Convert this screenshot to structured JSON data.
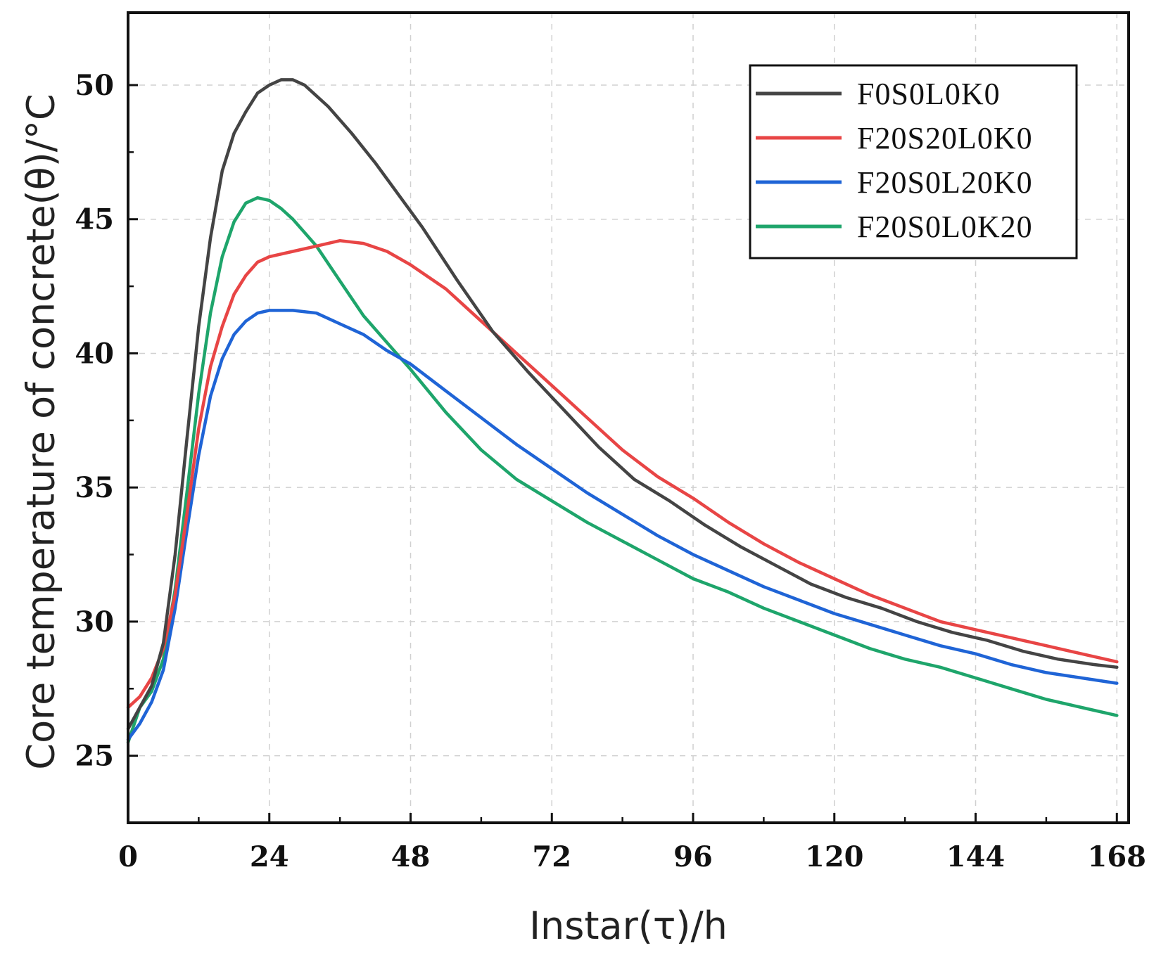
{
  "chart_data": {
    "type": "line",
    "title": "",
    "xlabel": "Instar(τ)/h",
    "ylabel": "Core temperature of concrete(θ)/°C",
    "xlim": [
      0,
      170
    ],
    "ylim": [
      22.5,
      52.7
    ],
    "xticks": [
      0,
      24,
      48,
      72,
      96,
      120,
      144,
      168
    ],
    "xtick_labels": [
      "0",
      "24",
      "48",
      "72",
      "96",
      "120",
      "144",
      "168"
    ],
    "yticks": [
      25,
      30,
      35,
      40,
      45,
      50
    ],
    "ytick_labels": [
      "25",
      "30",
      "35",
      "40",
      "45",
      "50"
    ],
    "grid": true,
    "legend_position": "top-right",
    "series": [
      {
        "name": "F0S0L0K0",
        "color": "#444444",
        "x": [
          0,
          2,
          4,
          6,
          8,
          10,
          12,
          14,
          16,
          18,
          20,
          22,
          24,
          26,
          28,
          30,
          34,
          38,
          42,
          46,
          50,
          56,
          62,
          68,
          74,
          80,
          86,
          92,
          98,
          104,
          110,
          116,
          122,
          128,
          134,
          140,
          146,
          152,
          158,
          164,
          168
        ],
        "y": [
          26.0,
          26.8,
          27.6,
          29.2,
          32.5,
          36.8,
          41.0,
          44.3,
          46.8,
          48.2,
          49.0,
          49.7,
          50.0,
          50.2,
          50.2,
          50.0,
          49.2,
          48.2,
          47.1,
          45.9,
          44.7,
          42.7,
          40.8,
          39.3,
          37.9,
          36.5,
          35.3,
          34.5,
          33.6,
          32.8,
          32.1,
          31.4,
          30.9,
          30.5,
          30.0,
          29.6,
          29.3,
          28.9,
          28.6,
          28.4,
          28.3
        ]
      },
      {
        "name": "F20S20L0K0",
        "color": "#e84545",
        "x": [
          0,
          2,
          4,
          6,
          8,
          10,
          12,
          14,
          16,
          18,
          20,
          22,
          24,
          28,
          32,
          36,
          40,
          44,
          48,
          54,
          60,
          66,
          72,
          78,
          84,
          90,
          96,
          102,
          108,
          114,
          120,
          126,
          132,
          138,
          144,
          150,
          156,
          162,
          168
        ],
        "y": [
          26.8,
          27.2,
          27.9,
          29.0,
          31.0,
          34.0,
          37.2,
          39.5,
          41.0,
          42.2,
          42.9,
          43.4,
          43.6,
          43.8,
          44.0,
          44.2,
          44.1,
          43.8,
          43.3,
          42.4,
          41.2,
          40.0,
          38.8,
          37.6,
          36.4,
          35.4,
          34.6,
          33.7,
          32.9,
          32.2,
          31.6,
          31.0,
          30.5,
          30.0,
          29.7,
          29.4,
          29.1,
          28.8,
          28.5
        ]
      },
      {
        "name": "F20S0L20K0",
        "color": "#1f64d6",
        "x": [
          0,
          2,
          4,
          6,
          8,
          10,
          12,
          14,
          16,
          18,
          20,
          22,
          24,
          28,
          32,
          36,
          40,
          44,
          48,
          54,
          60,
          66,
          72,
          78,
          84,
          90,
          96,
          102,
          108,
          114,
          120,
          126,
          132,
          138,
          144,
          150,
          156,
          162,
          168
        ],
        "y": [
          25.6,
          26.2,
          27.0,
          28.2,
          30.5,
          33.4,
          36.2,
          38.4,
          39.8,
          40.7,
          41.2,
          41.5,
          41.6,
          41.6,
          41.5,
          41.1,
          40.7,
          40.1,
          39.6,
          38.6,
          37.6,
          36.6,
          35.7,
          34.8,
          34.0,
          33.2,
          32.5,
          31.9,
          31.3,
          30.8,
          30.3,
          29.9,
          29.5,
          29.1,
          28.8,
          28.4,
          28.1,
          27.9,
          27.7
        ]
      },
      {
        "name": "F20S0L0K20",
        "color": "#1ea56b",
        "x": [
          0,
          2,
          4,
          6,
          8,
          10,
          12,
          14,
          16,
          18,
          20,
          22,
          24,
          26,
          28,
          32,
          36,
          40,
          44,
          48,
          54,
          60,
          66,
          72,
          78,
          84,
          90,
          96,
          102,
          108,
          114,
          120,
          126,
          132,
          138,
          144,
          150,
          156,
          162,
          168
        ],
        "y": [
          25.5,
          26.8,
          27.4,
          28.6,
          31.2,
          34.8,
          38.5,
          41.5,
          43.6,
          44.9,
          45.6,
          45.8,
          45.7,
          45.4,
          45.0,
          44.0,
          42.7,
          41.4,
          40.4,
          39.4,
          37.8,
          36.4,
          35.3,
          34.5,
          33.7,
          33.0,
          32.3,
          31.6,
          31.1,
          30.5,
          30.0,
          29.5,
          29.0,
          28.6,
          28.3,
          27.9,
          27.5,
          27.1,
          26.8,
          26.5
        ]
      }
    ]
  }
}
